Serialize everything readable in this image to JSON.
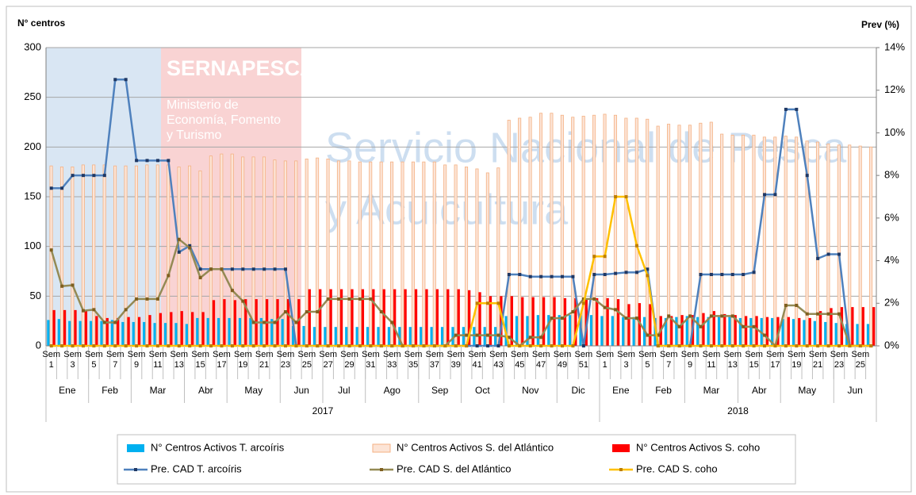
{
  "chart_data": {
    "type": "bar",
    "y_label": "N° centros",
    "y2_label": "Prev (%)",
    "watermark": {
      "brand": "SERNAPESCA",
      "ministry": [
        "Ministerio de",
        "Economía, Fomento",
        "y Turismo"
      ],
      "service": [
        "Servicio Nacional de Pesca",
        "y Acuicultura"
      ]
    },
    "categories": [
      "Sem 1",
      null,
      "Sem 3",
      null,
      "Sem 5",
      null,
      "Sem 7",
      null,
      "Sem 9",
      null,
      "Sem 11",
      null,
      "Sem 13",
      null,
      "Sem 15",
      null,
      "Sem 17",
      null,
      "Sem 19",
      null,
      "Sem 21",
      null,
      "Sem 23",
      null,
      "Sem 25",
      null,
      "Sem 27",
      null,
      "Sem 29",
      null,
      "Sem 31",
      null,
      "Sem 33",
      null,
      "Sem 35",
      null,
      "Sem 37",
      null,
      "Sem 39",
      null,
      "Sem 41",
      null,
      "Sem 43",
      null,
      "Sem 45",
      null,
      "Sem 47",
      null,
      "Sem 49",
      null,
      "Sem 51",
      null,
      "Sem 1",
      null,
      "Sem 3",
      null,
      "Sem 5",
      null,
      "Sem 7",
      null,
      "Sem 9",
      null,
      "Sem 11",
      null,
      "Sem 13",
      null,
      "Sem 15",
      null,
      "Sem 17",
      null,
      "Sem 19",
      null,
      "Sem 21",
      null,
      "Sem 23",
      null,
      "Sem 25",
      null
    ],
    "months": [
      "Ene",
      "Feb",
      "Mar",
      "Abr",
      "May",
      "Jun",
      "Jul",
      "Ago",
      "Sep",
      "Oct",
      "Nov",
      "Dic",
      "Ene",
      "Feb",
      "Mar",
      "Abr",
      "May",
      "Jun"
    ],
    "years": [
      "2017",
      "2018"
    ],
    "ylim": [
      0,
      300
    ],
    "yticks": [
      0,
      50,
      100,
      150,
      200,
      250,
      300
    ],
    "y2lim": [
      0,
      14
    ],
    "y2ticks": [
      {
        "value": 0,
        "label": "0%"
      },
      {
        "value": 2,
        "label": "2%"
      },
      {
        "value": 4,
        "label": "4%"
      },
      {
        "value": 6,
        "label": "6%"
      },
      {
        "value": 8,
        "label": "8%"
      },
      {
        "value": 10,
        "label": "10%"
      },
      {
        "value": 12,
        "label": "12%"
      },
      {
        "value": 14,
        "label": "14%"
      }
    ],
    "grid": true,
    "legend": "bottom",
    "series": [
      {
        "name": "N° Centros Activos T. arcoíris",
        "type": "bar",
        "color": "#00b0f0",
        "values": [
          26,
          27,
          25,
          25,
          25,
          25,
          26,
          24,
          24,
          24,
          23,
          23,
          23,
          22,
          28,
          28,
          28,
          28,
          28,
          28,
          28,
          27,
          27,
          20,
          20,
          19,
          19,
          19,
          19,
          19,
          19,
          19,
          19,
          19,
          19,
          19,
          19,
          19,
          19,
          19,
          19,
          19,
          19,
          30,
          30,
          30,
          31,
          31,
          31,
          31,
          31,
          31,
          30,
          30,
          29,
          29,
          29,
          28,
          28,
          29,
          30,
          29,
          29,
          29,
          29,
          28,
          28,
          28,
          28,
          27,
          27,
          26,
          25,
          24,
          23,
          22,
          22,
          22
        ]
      },
      {
        "name": "N° Centros Activos S. del Atlántico",
        "type": "bar",
        "color": "#fce4d6",
        "edge_color": "#f4b183",
        "values": [
          181,
          180,
          180,
          182,
          182,
          182,
          181,
          181,
          181,
          182,
          182,
          182,
          180,
          181,
          176,
          191,
          193,
          193,
          190,
          190,
          190,
          187,
          186,
          186,
          188,
          189,
          188,
          186,
          186,
          185,
          185,
          185,
          185,
          185,
          185,
          185,
          185,
          182,
          182,
          180,
          178,
          174,
          179,
          227,
          229,
          230,
          234,
          234,
          232,
          230,
          231,
          232,
          233,
          232,
          229,
          229,
          228,
          221,
          223,
          222,
          222,
          224,
          225,
          213,
          212,
          212,
          212,
          210,
          210,
          211,
          210,
          206,
          205,
          203,
          202,
          202,
          201,
          200
        ]
      },
      {
        "name": "N° Centros Activos S. coho",
        "type": "bar",
        "color": "#ff0000",
        "values": [
          36,
          36,
          36,
          36,
          30,
          28,
          28,
          29,
          29,
          31,
          33,
          34,
          35,
          34,
          34,
          46,
          47,
          46,
          47,
          47,
          47,
          47,
          47,
          47,
          57,
          57,
          57,
          57,
          57,
          57,
          57,
          57,
          57,
          57,
          57,
          57,
          57,
          57,
          57,
          56,
          54,
          50,
          50,
          50,
          49,
          49,
          49,
          49,
          48,
          48,
          48,
          48,
          48,
          47,
          42,
          43,
          42,
          30,
          30,
          31,
          31,
          33,
          35,
          32,
          31,
          30,
          30,
          29,
          29,
          29,
          28,
          28,
          35,
          38,
          39,
          39,
          39,
          39
        ]
      },
      {
        "name": "Pre. CAD T. arcoíris",
        "type": "line",
        "axis": "y2",
        "color": "#4f81bd",
        "marker_color": "#1f3864",
        "values": [
          7.4,
          7.4,
          8.0,
          8.0,
          8.0,
          8.0,
          12.5,
          12.5,
          8.7,
          8.7,
          8.7,
          8.7,
          4.4,
          4.7,
          3.6,
          3.6,
          3.6,
          3.6,
          3.6,
          3.6,
          3.6,
          3.6,
          3.6,
          0,
          0,
          0,
          0,
          0,
          0,
          0,
          0,
          0,
          0,
          0,
          0,
          0,
          0,
          0,
          0,
          0,
          0,
          0,
          0,
          3.35,
          3.35,
          3.25,
          3.25,
          3.25,
          3.25,
          3.25,
          0,
          3.35,
          3.35,
          3.4,
          3.45,
          3.45,
          3.6,
          0,
          0,
          0,
          0,
          3.35,
          3.35,
          3.35,
          3.35,
          3.35,
          3.45,
          7.1,
          7.1,
          11.1,
          11.1,
          8.0,
          4.1,
          4.3,
          4.3,
          0,
          0,
          0
        ]
      },
      {
        "name": "Pre. CAD S. del Atlántico",
        "type": "line",
        "axis": "y2",
        "color": "#948a54",
        "marker_color": "#7f5f1f",
        "values": [
          4.5,
          2.8,
          2.85,
          1.65,
          1.7,
          1.1,
          1.1,
          1.7,
          2.2,
          2.2,
          2.2,
          3.3,
          5.0,
          4.6,
          3.2,
          3.6,
          3.6,
          2.6,
          2.1,
          1.1,
          1.1,
          1.1,
          1.6,
          1.1,
          1.6,
          1.6,
          2.2,
          2.2,
          2.2,
          2.2,
          2.2,
          1.6,
          1.1,
          0,
          0,
          0,
          0,
          0,
          0.5,
          0.5,
          0.5,
          0.5,
          0.5,
          0.4,
          0,
          0.4,
          0.4,
          1.3,
          1.3,
          1.6,
          2.2,
          2.2,
          1.8,
          1.7,
          1.3,
          1.3,
          0.5,
          0.5,
          1.4,
          0.9,
          1.4,
          0.9,
          1.4,
          1.4,
          1.4,
          0.9,
          0.9,
          0.5,
          0,
          1.9,
          1.9,
          1.5,
          1.5,
          1.5,
          1.5,
          0,
          0,
          0
        ]
      },
      {
        "name": "Pre. CAD S. coho",
        "type": "line",
        "axis": "y2",
        "color": "#ffc000",
        "marker_color": "#bf7f00",
        "values": [
          0,
          0,
          0,
          0,
          0,
          0,
          0,
          0,
          0,
          0,
          0,
          0,
          0,
          0,
          0,
          0,
          0,
          0,
          0,
          0,
          0,
          0,
          0,
          0,
          0,
          0,
          0,
          0,
          0,
          0,
          0,
          0,
          0,
          0,
          0,
          0,
          0,
          0,
          0,
          0,
          2.0,
          2.0,
          2.0,
          0,
          0,
          0,
          0,
          0,
          0,
          0,
          2.0,
          4.2,
          4.2,
          7.0,
          7.0,
          4.7,
          3.3,
          0,
          0,
          0,
          0,
          0,
          0,
          0,
          0,
          0,
          0,
          0,
          0,
          0,
          0,
          0,
          0,
          0,
          0,
          0,
          0,
          0
        ]
      }
    ]
  }
}
